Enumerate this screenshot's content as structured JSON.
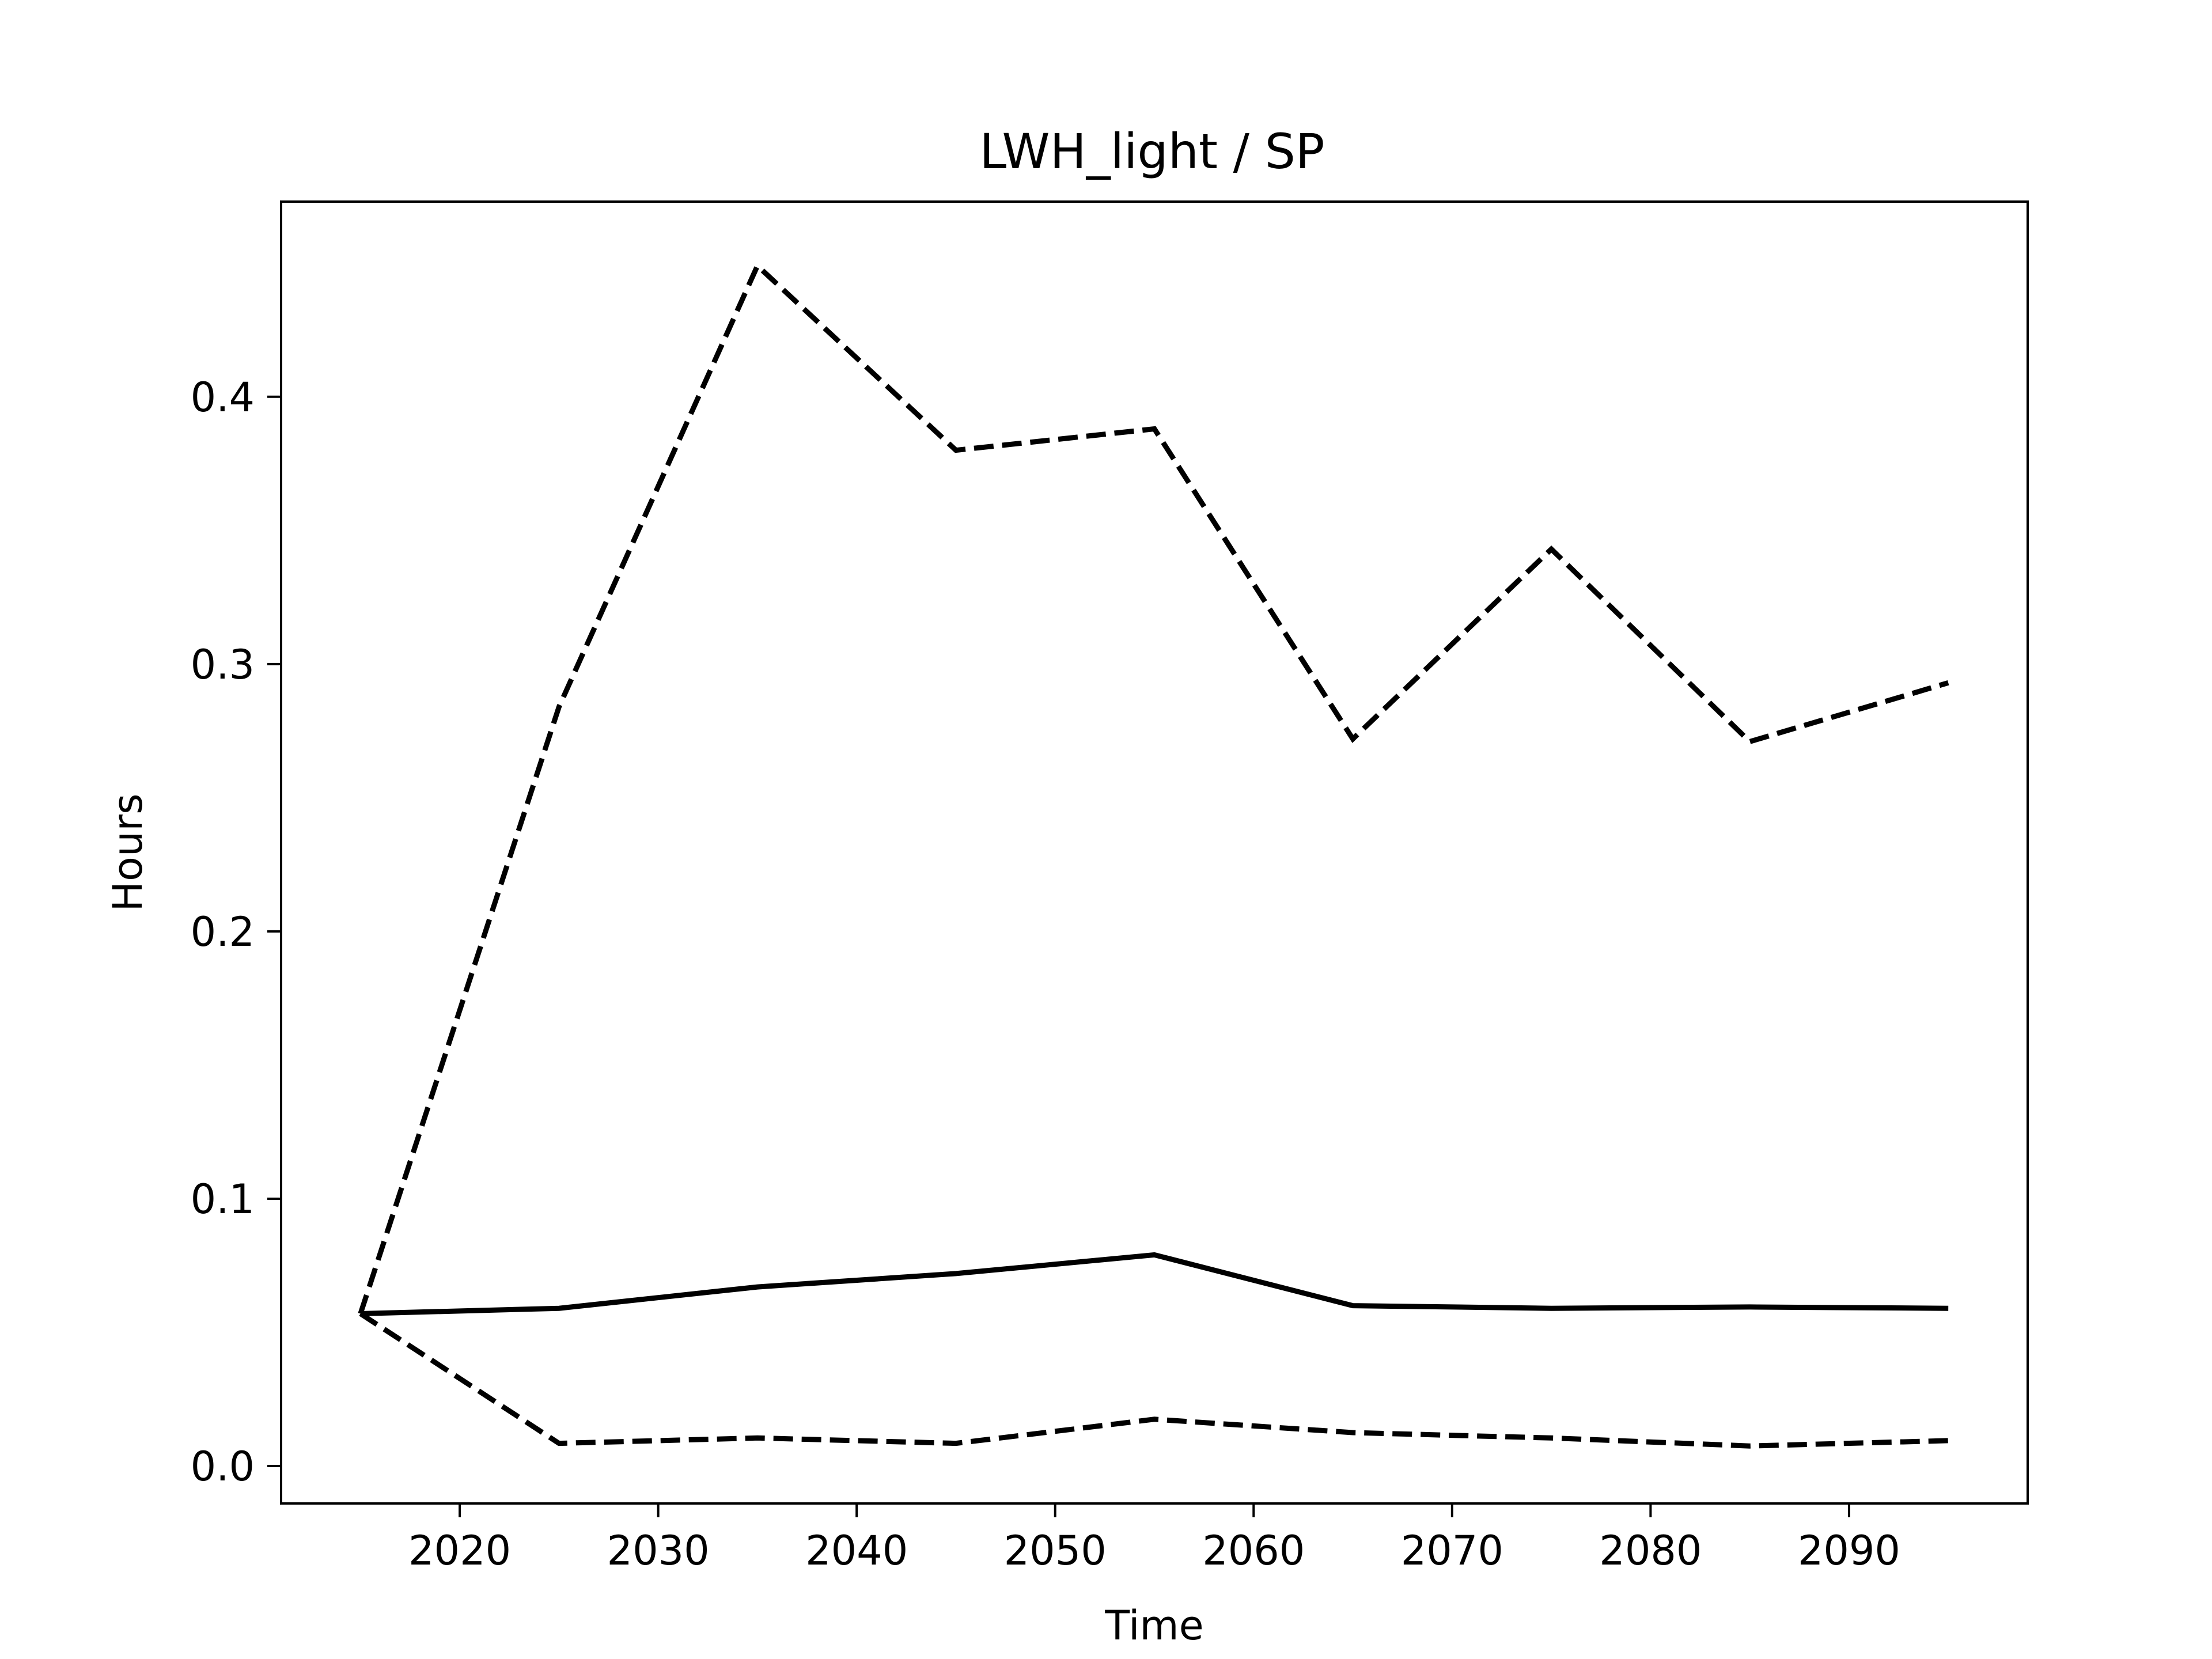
{
  "chart_data": {
    "type": "line",
    "title": "LWH_light / SP",
    "xlabel": "Time",
    "ylabel": "Hours",
    "xlim": [
      2011,
      2099
    ],
    "ylim": [
      -0.014,
      0.473
    ],
    "xticks": [
      2020,
      2030,
      2040,
      2050,
      2060,
      2070,
      2080,
      2090
    ],
    "yticks": [
      0.0,
      0.1,
      0.2,
      0.3,
      0.4
    ],
    "ytick_labels": [
      "0.0",
      "0.1",
      "0.2",
      "0.3",
      "0.4"
    ],
    "grid": false,
    "x": [
      2015,
      2025,
      2035,
      2045,
      2055,
      2065,
      2075,
      2085,
      2095
    ],
    "series": [
      {
        "style": "solid",
        "color": "#000000",
        "values": [
          0.057,
          0.059,
          0.067,
          0.072,
          0.079,
          0.06,
          0.059,
          0.0595,
          0.059
        ]
      },
      {
        "style": "dashed",
        "color": "#000000",
        "values": [
          0.057,
          0.284,
          0.449,
          0.38,
          0.388,
          0.272,
          0.343,
          0.271,
          0.293
        ]
      },
      {
        "style": "dashed",
        "color": "#000000",
        "values": [
          0.057,
          0.0085,
          0.0105,
          0.0085,
          0.0175,
          0.0125,
          0.0105,
          0.0075,
          0.0095
        ]
      }
    ]
  }
}
